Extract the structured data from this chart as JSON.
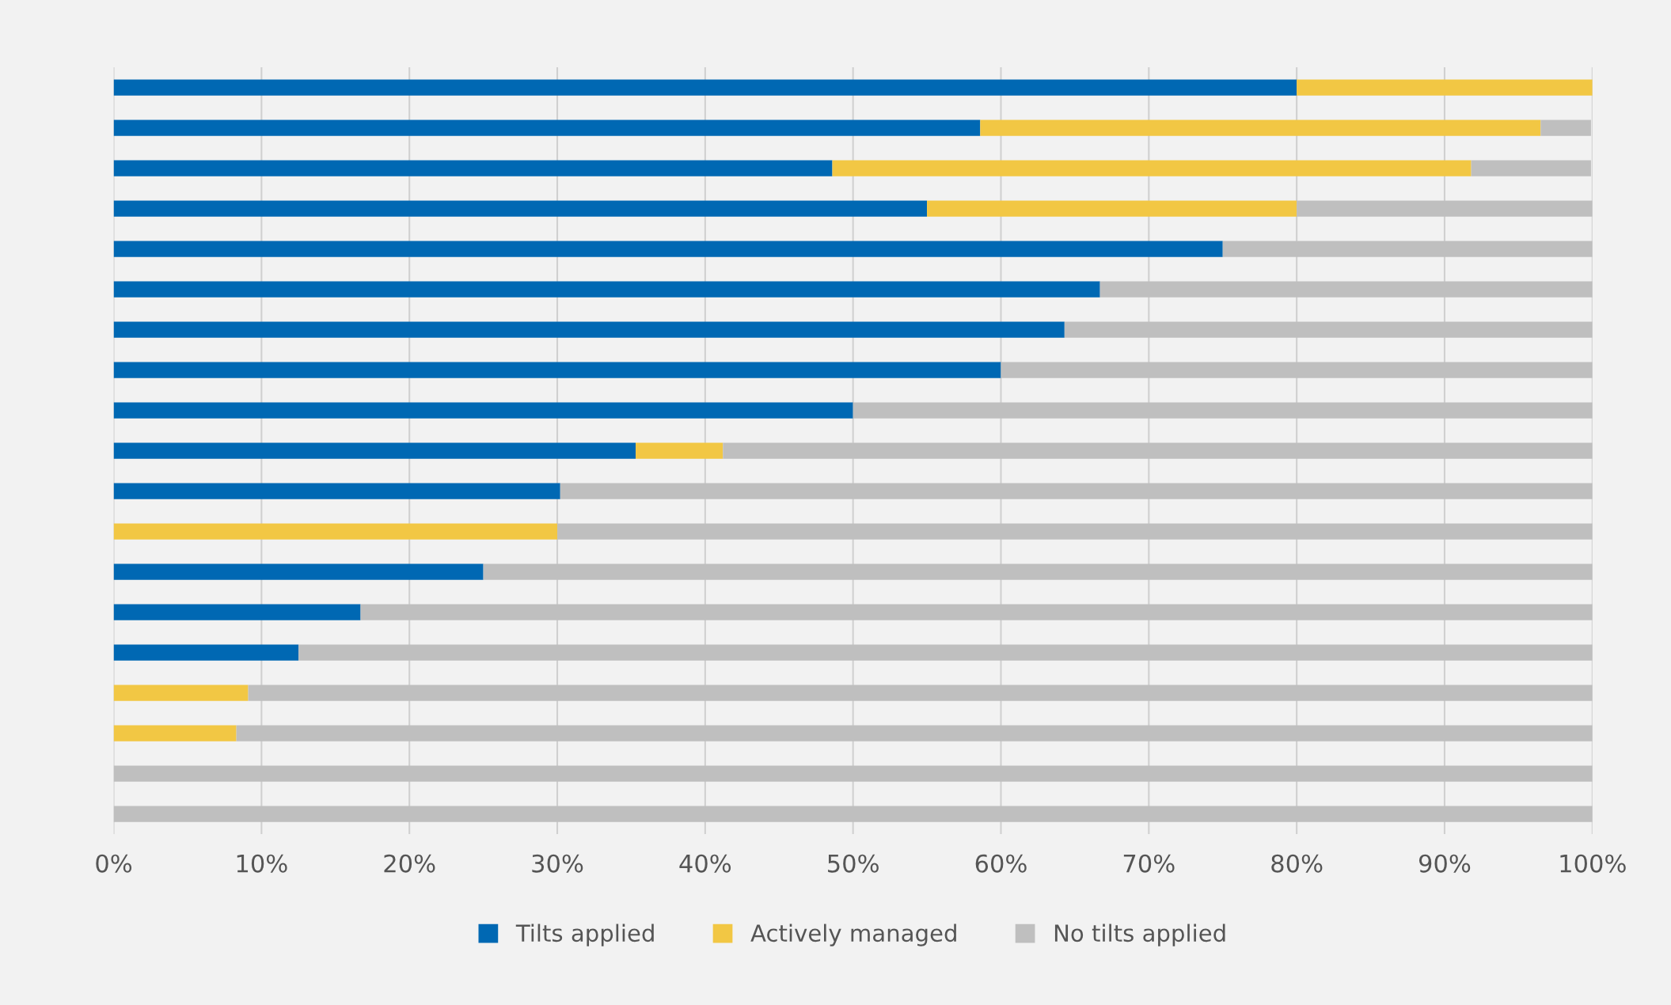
{
  "chart_data": {
    "type": "bar",
    "orientation": "horizontal",
    "stacked": true,
    "categories": [
      null,
      null,
      null,
      null,
      null,
      null,
      null,
      null,
      null,
      null,
      null,
      null,
      null,
      null,
      null,
      null,
      null,
      null,
      null
    ],
    "series": [
      {
        "name": "Tilts applied",
        "color": "#0068b3",
        "values": [
          80,
          58.6,
          48.6,
          55,
          75,
          66.7,
          64.3,
          60,
          50,
          35.3,
          30.2,
          0,
          25,
          16.7,
          12.5,
          0,
          0,
          0,
          0
        ]
      },
      {
        "name": "Actively managed",
        "color": "#f2c744",
        "values": [
          20,
          37.9,
          43.2,
          25,
          0,
          0,
          0,
          0,
          0,
          5.9,
          0,
          30,
          0,
          0,
          0,
          9.1,
          8.3,
          0,
          0
        ]
      },
      {
        "name": "No tilts applied",
        "color": "#bfbfbf",
        "values": [
          0,
          3.4,
          8.1,
          20,
          25,
          33.3,
          35.7,
          40,
          50,
          58.8,
          69.8,
          70,
          75,
          83.3,
          87.5,
          90.9,
          91.7,
          100,
          100
        ]
      }
    ],
    "xlim": [
      0,
      100
    ],
    "xticks": [
      {
        "value": 0,
        "label": "0%"
      },
      {
        "value": 10,
        "label": "10%"
      },
      {
        "value": 20,
        "label": "20%"
      },
      {
        "value": 30,
        "label": "30%"
      },
      {
        "value": 40,
        "label": "40%"
      },
      {
        "value": 50,
        "label": "50%"
      },
      {
        "value": 60,
        "label": "60%"
      },
      {
        "value": 70,
        "label": "70%"
      },
      {
        "value": 80,
        "label": "80%"
      },
      {
        "value": 90,
        "label": "90%"
      },
      {
        "value": 100,
        "label": "100%"
      }
    ],
    "grid": "x",
    "legend": "bottom",
    "tick_labels": "x"
  }
}
